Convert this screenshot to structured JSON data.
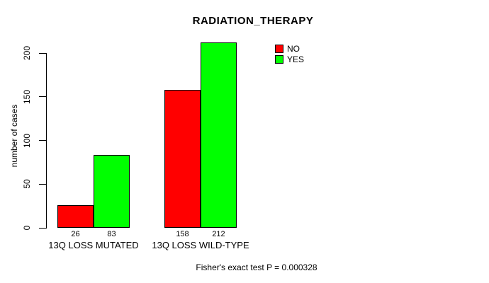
{
  "title": "RADIATION_THERAPY",
  "y_axis_label": "number of cases",
  "footer": "Fisher's exact test P = 0.000328",
  "legend": {
    "items": [
      {
        "label": "NO",
        "color": "#ff0000"
      },
      {
        "label": "YES",
        "color": "#00ff00"
      }
    ]
  },
  "chart_data": {
    "type": "bar",
    "title": "RADIATION_THERAPY",
    "xlabel": "",
    "ylabel": "number of cases",
    "categories": [
      "13Q LOSS MUTATED",
      "13Q LOSS WILD-TYPE"
    ],
    "series": [
      {
        "name": "NO",
        "color": "#ff0000",
        "values": [
          26,
          158
        ]
      },
      {
        "name": "YES",
        "color": "#00ff00",
        "values": [
          83,
          212
        ]
      }
    ],
    "bar_value_labels": [
      [
        26,
        158
      ],
      [
        83,
        212
      ]
    ],
    "yticks": [
      0,
      50,
      100,
      150,
      200
    ],
    "ylim": [
      0,
      220
    ],
    "grid": false,
    "legend_position": "top-right",
    "annotation": "Fisher's exact test P = 0.000328"
  }
}
